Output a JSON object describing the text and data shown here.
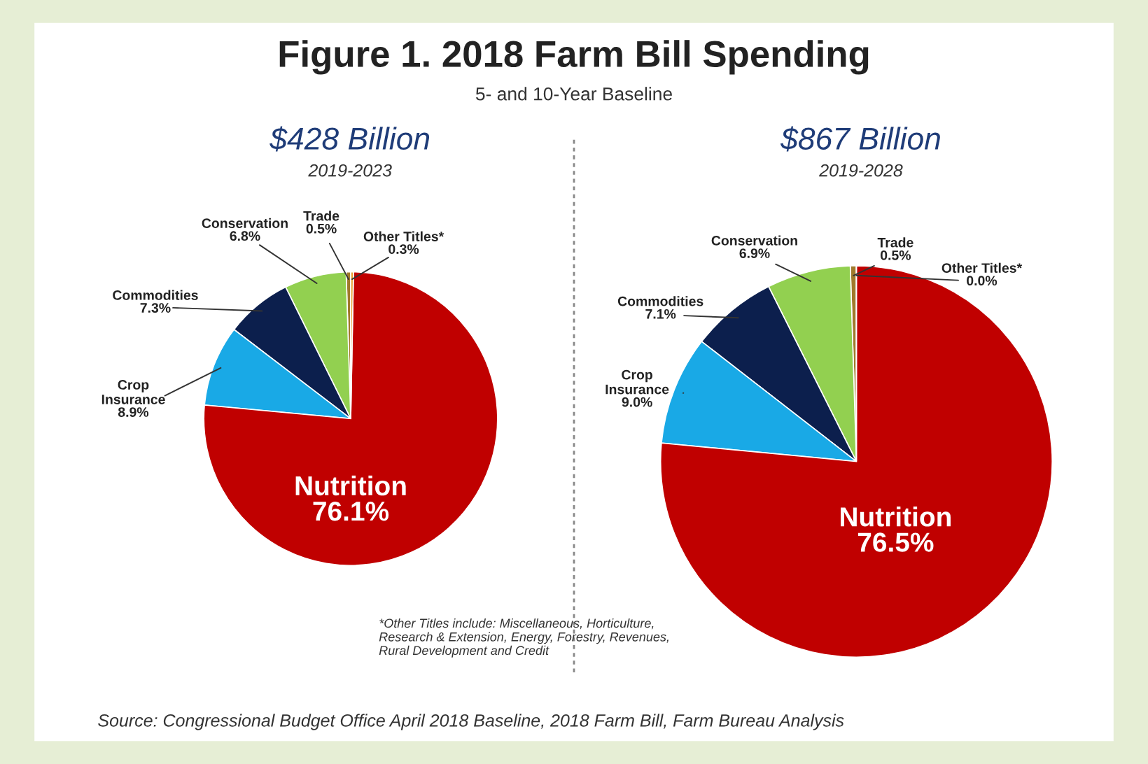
{
  "chart_data": [
    {
      "type": "other",
      "title": "Figure 1. 2018 Farm Bill Spending",
      "subtitle": "5- and 10-Year Baseline",
      "annotations": [
        "*Other Titles include: Miscellaneous, Horticulture,\nResearch & Extension, Energy, Forestry, Revenues,\nRural Development and Credit",
        "Source: Congressional Budget Office April 2018 Baseline, 2018 Farm Bill, Farm Bureau Analysis"
      ]
    },
    {
      "type": "pie",
      "title": "$428 Billion",
      "subtitle": "2019-2023",
      "categories": [
        "Trade",
        "Conservation",
        "Commodities",
        "Crop\nInsurance",
        "Nutrition",
        "Other Titles*"
      ],
      "values": [
        0.5,
        6.8,
        7.3,
        8.9,
        76.1,
        0.3
      ],
      "value_labels": [
        "0.5%",
        "6.8%",
        "7.3%",
        "8.9%",
        "76.1%",
        "0.3%"
      ],
      "colors": [
        "#a07a2c",
        "#92d050",
        "#0c1f4d",
        "#19a9e6",
        "#c00000",
        "#e8a030"
      ]
    },
    {
      "type": "pie",
      "title": "$867 Billion",
      "subtitle": "2019-2028",
      "categories": [
        "Trade",
        "Conservation",
        "Commodities",
        "Crop\nInsurance",
        "Nutrition",
        "Other Titles*"
      ],
      "values": [
        0.5,
        6.9,
        7.1,
        9.0,
        76.5,
        0.0
      ],
      "value_labels": [
        "0.5%",
        "6.9%",
        "7.1%",
        "9.0%",
        "76.5%",
        "0.0%"
      ],
      "colors": [
        "#a07a2c",
        "#92d050",
        "#0c1f4d",
        "#19a9e6",
        "#c00000",
        "#e8a030"
      ]
    }
  ]
}
